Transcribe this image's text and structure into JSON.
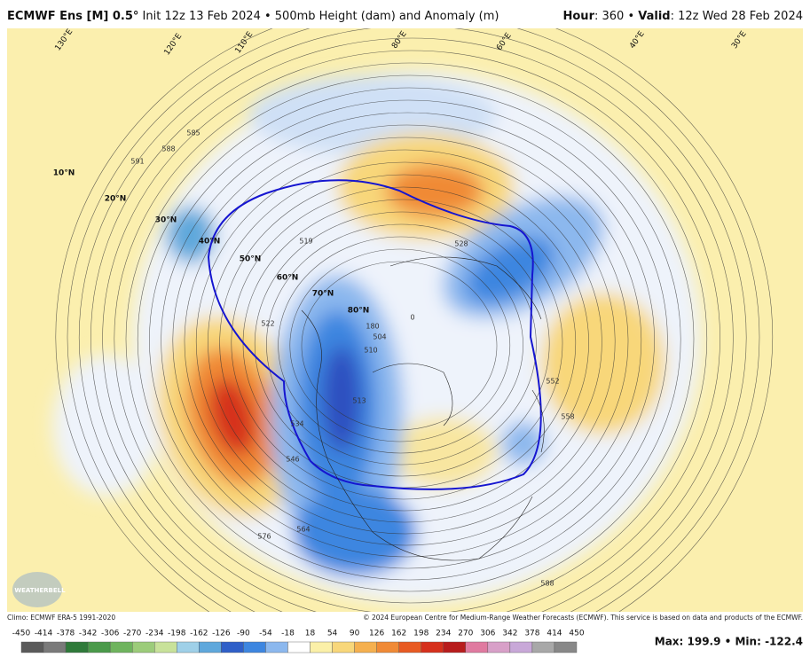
{
  "header": {
    "model": "ECMWF Ens [M] 0.5°",
    "description": "Init 12z 13 Feb 2024 • 500mb Height (dam) and Anomaly (m)",
    "hour_label": "Hour",
    "hour_value": ": 360 • ",
    "valid_label": "Valid",
    "valid_value": ": 12z Wed 28 Feb 2024"
  },
  "map": {
    "latitude_labels": [
      "10°N",
      "20°N",
      "30°N",
      "40°N",
      "50°N",
      "60°N",
      "70°N",
      "80°N"
    ],
    "longitude_labels": [
      "130°E",
      "120°E",
      "110°E",
      "80°E",
      "60°E",
      "40°E",
      "30°E"
    ],
    "contour_labels": [
      "591",
      "588",
      "585",
      "576",
      "564",
      "546",
      "534",
      "522",
      "519",
      "510",
      "504",
      "513",
      "528",
      "552",
      "558",
      "588",
      "180",
      "0"
    ],
    "logo": "WEATHERBELL"
  },
  "footer": {
    "climo": "Climo: ECMWF ERA-5 1991-2020",
    "copyright": "© 2024 European Centre for Medium-Range Weather Forecasts (ECMWF). This service is based on data and products of the ECMWF.",
    "stats": "Max: 199.9 • Min: -122.4"
  },
  "colorbar": {
    "ticks": [
      -450,
      -414,
      -378,
      -342,
      -306,
      -270,
      -234,
      -198,
      -162,
      -126,
      -90,
      -54,
      -18,
      18,
      54,
      90,
      126,
      162,
      198,
      234,
      270,
      306,
      342,
      378,
      414,
      450
    ],
    "colors": [
      "#5a5a5a",
      "#7a7a7a",
      "#2f7a3a",
      "#4a9a4a",
      "#6fb45e",
      "#9ccc7a",
      "#c8e29a",
      "#9fd0e8",
      "#5fa8dc",
      "#2f5fc8",
      "#3d86e0",
      "#8cb8ee",
      "#ffffff",
      "#fbf0a8",
      "#f8d77a",
      "#f5b04f",
      "#f08a36",
      "#e85a22",
      "#d6301c",
      "#b81c1c",
      "#e07aa0",
      "#d8a0c8",
      "#c8a8d8",
      "#a8a8a8",
      "#888888"
    ]
  }
}
